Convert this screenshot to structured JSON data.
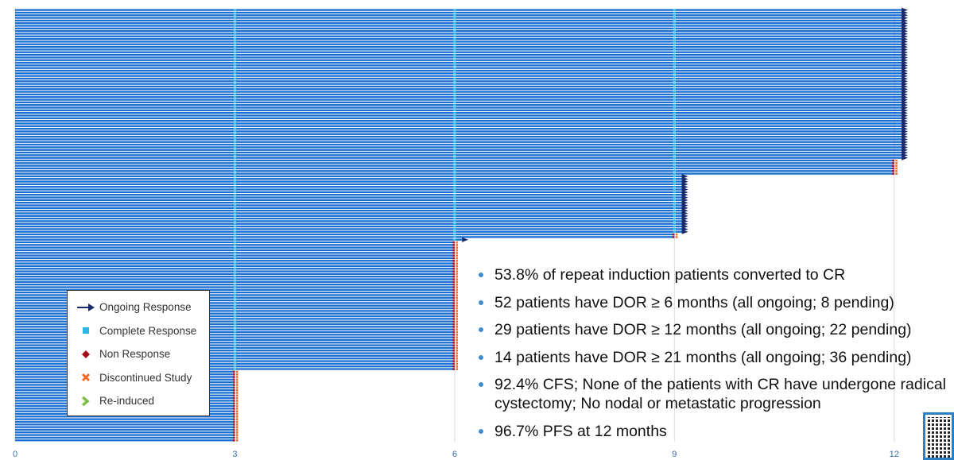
{
  "chart_data": {
    "type": "swimmer",
    "x_ticks": [
      "0",
      "3",
      "6",
      "9",
      "12"
    ],
    "xlim": [
      0,
      12.4
    ],
    "groups": [
      {
        "count": 57,
        "end_months": 12.1,
        "terminal_markers": "ongoing-arrow"
      },
      {
        "count": 6,
        "end_months": 12.0,
        "terminal_markers": "discontinued"
      },
      {
        "count": 22,
        "end_months": 9.1,
        "terminal_markers": "ongoing-arrow"
      },
      {
        "count": 2,
        "end_months": 9.0,
        "terminal_markers": "discontinued"
      },
      {
        "count": 1,
        "end_months": 6.1,
        "terminal_markers": "ongoing-arrow"
      },
      {
        "count": 49,
        "end_months": 6.0,
        "terminal_markers": "discontinued"
      },
      {
        "count": 27,
        "end_months": 3.0,
        "terminal_markers": "discontinued"
      }
    ],
    "complete_response_months": [
      3,
      6,
      9
    ],
    "bar_color": "#1a6fd1",
    "complete_response_color": "#3cc6e8",
    "ongoing_color": "#1b2a6b",
    "non_response_color": "#b01020",
    "discontinued_color": "#f06a2a",
    "reinduced_color": "#7cc04a"
  },
  "legend": {
    "items": [
      {
        "label": "Ongoing Response",
        "icon": "arrow-right-icon"
      },
      {
        "label": "Complete Response",
        "icon": "square-icon"
      },
      {
        "label": "Non Response",
        "icon": "diamond-icon"
      },
      {
        "label": "Discontinued Study",
        "icon": "x-icon"
      },
      {
        "label": "Re-induced",
        "icon": "chevron-right-icon"
      }
    ]
  },
  "bullets": [
    "53.8% of repeat induction patients converted to CR",
    "52 patients have DOR ≥ 6 months (all ongoing; 8 pending)",
    "29 patients have DOR ≥ 12 months (all ongoing; 22 pending)",
    "14 patients have DOR ≥ 21 months (all ongoing; 36 pending)",
    "92.4% CFS; None of the patients with CR have undergone radical cystectomy; No nodal or metastatic progression",
    "96.7% PFS at 12 months"
  ]
}
